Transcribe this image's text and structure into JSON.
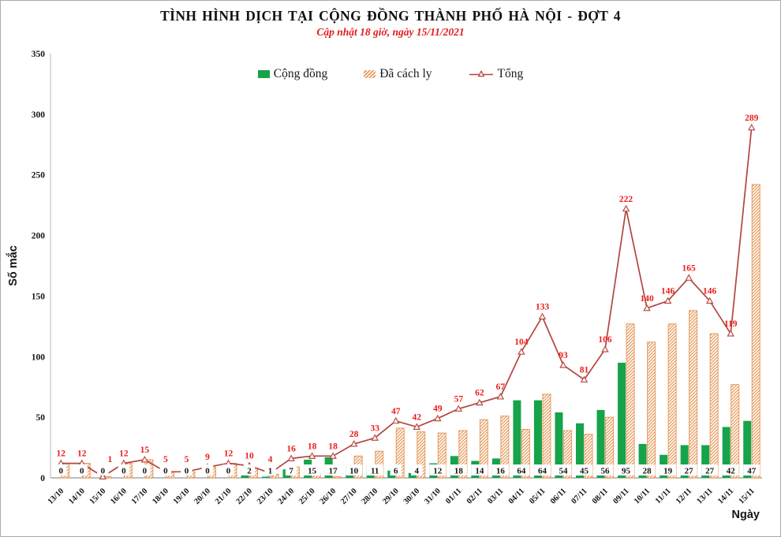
{
  "header": {
    "title": "TÌNH HÌNH DỊCH TẠI CỘNG ĐỒNG THÀNH PHỐ HÀ NỘI - ĐỢT 4",
    "subtitle": "Cập nhật 18 giờ, ngày 15/11/2021"
  },
  "legend": {
    "items": [
      {
        "label": "Cộng đồng",
        "type": "bar",
        "color": "#16A34A"
      },
      {
        "label": "Đã cách ly",
        "type": "bar-hatched",
        "color": "#E79B5E"
      },
      {
        "label": "Tổng",
        "type": "line-open-triangle-marker",
        "color": "#B2453F"
      }
    ]
  },
  "chart_data": {
    "type": "bar",
    "subtype": "grouped bars + total line overlay",
    "title": "TÌNH HÌNH DỊCH TẠI CỘNG ĐỒNG THÀNH PHỐ HÀ NỘI - ĐỢT 4",
    "subtitle": "Cập nhật 18 giờ, ngày 15/11/2021",
    "xlabel": "Ngày",
    "ylabel": "Số mắc",
    "ylim": [
      0,
      350
    ],
    "y_ticks": [
      0,
      50,
      100,
      150,
      200,
      250,
      300,
      350
    ],
    "grid": false,
    "legend_position": "top",
    "categories": [
      "13/10",
      "14/10",
      "15/10",
      "16/10",
      "17/10",
      "18/10",
      "19/10",
      "20/10",
      "21/10",
      "22/10",
      "23/10",
      "24/10",
      "25/10",
      "26/10",
      "27/10",
      "28/10",
      "29/10",
      "30/10",
      "31/10",
      "01/11",
      "02/11",
      "03/11",
      "04/11",
      "05/11",
      "06/11",
      "07/11",
      "08/11",
      "09/11",
      "10/11",
      "11/11",
      "12/11",
      "13/11",
      "14/11",
      "15/11"
    ],
    "series": [
      {
        "name": "Cộng đồng",
        "type": "bar",
        "color": "#16A34A",
        "data_labels": "black, shown at bar base on white boxes",
        "values": [
          0,
          0,
          0,
          0,
          0,
          0,
          0,
          0,
          0,
          2,
          1,
          7,
          15,
          17,
          10,
          11,
          6,
          4,
          12,
          18,
          14,
          16,
          64,
          64,
          54,
          45,
          56,
          95,
          28,
          19,
          27,
          27,
          42,
          47
        ]
      },
      {
        "name": "Đã cách ly",
        "type": "bar",
        "style": "diagonal-hatch",
        "color": "#E79B5E",
        "data_labels": "none (derived as Tổng - Cộng đồng)",
        "values": [
          12,
          12,
          1,
          12,
          15,
          5,
          5,
          9,
          12,
          8,
          3,
          9,
          3,
          1,
          18,
          22,
          41,
          38,
          37,
          39,
          48,
          51,
          40,
          69,
          39,
          36,
          50,
          127,
          112,
          127,
          138,
          119,
          77,
          242
        ]
      },
      {
        "name": "Tổng",
        "type": "line",
        "color": "#B2453F",
        "marker": "open-triangle",
        "label_color": "#EC1C1C",
        "data_labels": "red, shown above each point",
        "values": [
          12,
          12,
          1,
          12,
          15,
          5,
          5,
          9,
          12,
          10,
          4,
          16,
          18,
          18,
          28,
          33,
          47,
          42,
          49,
          57,
          62,
          67,
          104,
          133,
          93,
          81,
          106,
          222,
          140,
          146,
          165,
          146,
          119,
          289
        ]
      }
    ]
  }
}
